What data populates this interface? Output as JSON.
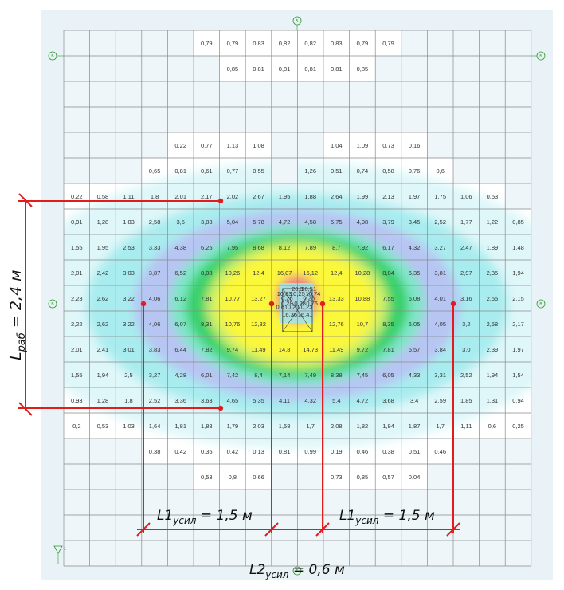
{
  "grid": {
    "cols": 18,
    "rows": 21,
    "values": [
      [
        "",
        "",
        "",
        "",
        "",
        "0,79",
        "0,79",
        "0,83",
        "0,82",
        "0,82",
        "0,83",
        "0,79",
        "0,79",
        "",
        "",
        "",
        "",
        ""
      ],
      [
        "",
        "",
        "",
        "",
        "",
        "",
        "0,85",
        "0,81",
        "0,81",
        "0,81",
        "0,81",
        "0,85",
        "",
        "",
        "",
        "",
        "",
        ""
      ],
      [
        "",
        "",
        "",
        "",
        "",
        "",
        "",
        "",
        "",
        "",
        "",
        "",
        "",
        "",
        "",
        "",
        "",
        ""
      ],
      [
        "",
        "",
        "",
        "",
        "",
        "",
        "",
        "",
        "",
        "",
        "",
        "",
        "",
        "",
        "",
        "",
        "",
        ""
      ],
      [
        "",
        "",
        "",
        "",
        "0,22",
        "0,77",
        "1,13",
        "1,08",
        "",
        "",
        "1,04",
        "1,09",
        "0,73",
        "0,16",
        "",
        "",
        "",
        ""
      ],
      [
        "",
        "",
        "",
        "0,65",
        "0,81",
        "0,61",
        "0,77",
        "0,55",
        "",
        "1,26",
        "0,51",
        "0,74",
        "0,58",
        "0,76",
        "0,6",
        "",
        "",
        ""
      ],
      [
        "0,22",
        "0,58",
        "1,11",
        "1,8",
        "2,01",
        "2,17",
        "2,02",
        "2,67",
        "1,95",
        "1,88",
        "2,64",
        "1,99",
        "2,13",
        "1,97",
        "1,75",
        "1,06",
        "0,53",
        ""
      ],
      [
        "0,91",
        "1,28",
        "1,83",
        "2,58",
        "3,5",
        "3,83",
        "5,04",
        "5,78",
        "4,72",
        "4,58",
        "5,75",
        "4,98",
        "3,79",
        "3,45",
        "2,52",
        "1,77",
        "1,22",
        "0,85"
      ],
      [
        "1,55",
        "1,95",
        "2,53",
        "3,33",
        "4,38",
        "6,25",
        "7,95",
        "8,68",
        "8,12",
        "7,89",
        "8,7",
        "7,92",
        "6,17",
        "4,32",
        "3,27",
        "2,47",
        "1,89",
        "1,48"
      ],
      [
        "2,01",
        "2,42",
        "3,03",
        "3,87",
        "6,52",
        "8,08",
        "10,26",
        "12,4",
        "16,07",
        "16,12",
        "12,4",
        "10,28",
        "8,04",
        "6,35",
        "3,81",
        "2,97",
        "2,35",
        "1,94"
      ],
      [
        "2,23",
        "2,62",
        "3,22",
        "4,06",
        "6,12",
        "7,81",
        "10,77",
        "13,27",
        "",
        "",
        "13,33",
        "10,88",
        "7,55",
        "6,08",
        "4,01",
        "3,16",
        "2,55",
        "2,15"
      ],
      [
        "2,22",
        "2,62",
        "3,22",
        "4,06",
        "6,07",
        "8,31",
        "10,76",
        "12,82",
        "",
        "",
        "12,76",
        "10,7",
        "8,35",
        "6,05",
        "4,05",
        "3,2",
        "2,58",
        "2,17"
      ],
      [
        "2,01",
        "2,41",
        "3,01",
        "3,83",
        "6,44",
        "7,82",
        "9,74",
        "11,49",
        "14,8",
        "14,73",
        "11,49",
        "9,72",
        "7,81",
        "6,57",
        "3,84",
        "3,0",
        "2,39",
        "1,97"
      ],
      [
        "1,55",
        "1,94",
        "2,5",
        "3,27",
        "4,28",
        "6,01",
        "7,42",
        "8,4",
        "7,14",
        "7,49",
        "8,38",
        "7,45",
        "6,05",
        "4,33",
        "3,31",
        "2,52",
        "1,94",
        "1,54"
      ],
      [
        "0,93",
        "1,28",
        "1,8",
        "2,52",
        "3,36",
        "3,63",
        "4,65",
        "5,35",
        "4,11",
        "4,32",
        "5,4",
        "4,72",
        "3,68",
        "3,4",
        "2,59",
        "1,85",
        "1,31",
        "0,94"
      ],
      [
        "0,2",
        "0,53",
        "1,03",
        "1,64",
        "1,81",
        "1,88",
        "1,79",
        "2,03",
        "1,58",
        "1,7",
        "2,08",
        "1,82",
        "1,94",
        "1,87",
        "1,7",
        "1,11",
        "0,6",
        "0,25"
      ],
      [
        "",
        "",
        "",
        "0,38",
        "0,42",
        "0,35",
        "0,42",
        "0,13",
        "0,81",
        "0,99",
        "0,19",
        "0,46",
        "0,38",
        "0,51",
        "0,46",
        "",
        "",
        ""
      ],
      [
        "",
        "",
        "",
        "",
        "",
        "0,53",
        "0,8",
        "0,66",
        "",
        "",
        "0,73",
        "0,85",
        "0,57",
        "0,04",
        "",
        "",
        "",
        ""
      ],
      [
        "",
        "",
        "",
        "",
        "",
        "",
        "",
        "",
        "",
        "",
        "",
        "",
        "",
        "",
        "",
        "",
        "",
        ""
      ],
      [
        "",
        "",
        "",
        "",
        "",
        "",
        "",
        "",
        "",
        "",
        "",
        "",
        "",
        "",
        "",
        "",
        "",
        ""
      ],
      [
        "",
        "",
        "",
        "",
        "",
        "",
        "",
        "",
        "",
        "",
        "",
        "",
        "",
        "",
        "",
        "",
        "",
        ""
      ]
    ],
    "center_values": [
      "20,3",
      "20,51",
      "10,83",
      "10,25",
      "10,74",
      "0,26",
      "0,28",
      "0,28",
      "0,28",
      "0,76",
      "0,61",
      "0,20",
      "0,23",
      "16,36",
      "16,41"
    ]
  },
  "contour": {
    "levels": [
      {
        "name": "band-cyan-light",
        "color": "#d9f6f8"
      },
      {
        "name": "band-cyan",
        "color": "#a5ecef"
      },
      {
        "name": "band-blue",
        "color": "#b9c6f2"
      },
      {
        "name": "band-green",
        "color": "#36d06a"
      },
      {
        "name": "band-yellow-green",
        "color": "#c6ee6a"
      },
      {
        "name": "band-yellow",
        "color": "#fbf73a"
      },
      {
        "name": "band-red",
        "color": "#ef7e7e"
      }
    ]
  },
  "axis_marks": {
    "top": "5",
    "left_top": "Б",
    "right_top": "Б",
    "left_mid": "В",
    "right_mid": "В",
    "bottom": "5",
    "corner": "1"
  },
  "dimensions": {
    "l_rab": {
      "text": "L",
      "sub": "раб",
      "value": " = 2,4 м"
    },
    "l1_left": {
      "text": "L1",
      "sub": "усил",
      "value": " = 1,5 м"
    },
    "l1_right": {
      "text": "L1",
      "sub": "усил",
      "value": " = 1,5 м"
    },
    "l2": {
      "text": "L2",
      "sub": "усил",
      "value": " = 0,6 м"
    }
  },
  "colors": {
    "grid_line": "#8a8a8a",
    "background_panel": "#e9f3f7",
    "cell_fill": "#ffffff",
    "dimension_line": "#e21b1b",
    "axis_green": "#2a9a2a"
  }
}
